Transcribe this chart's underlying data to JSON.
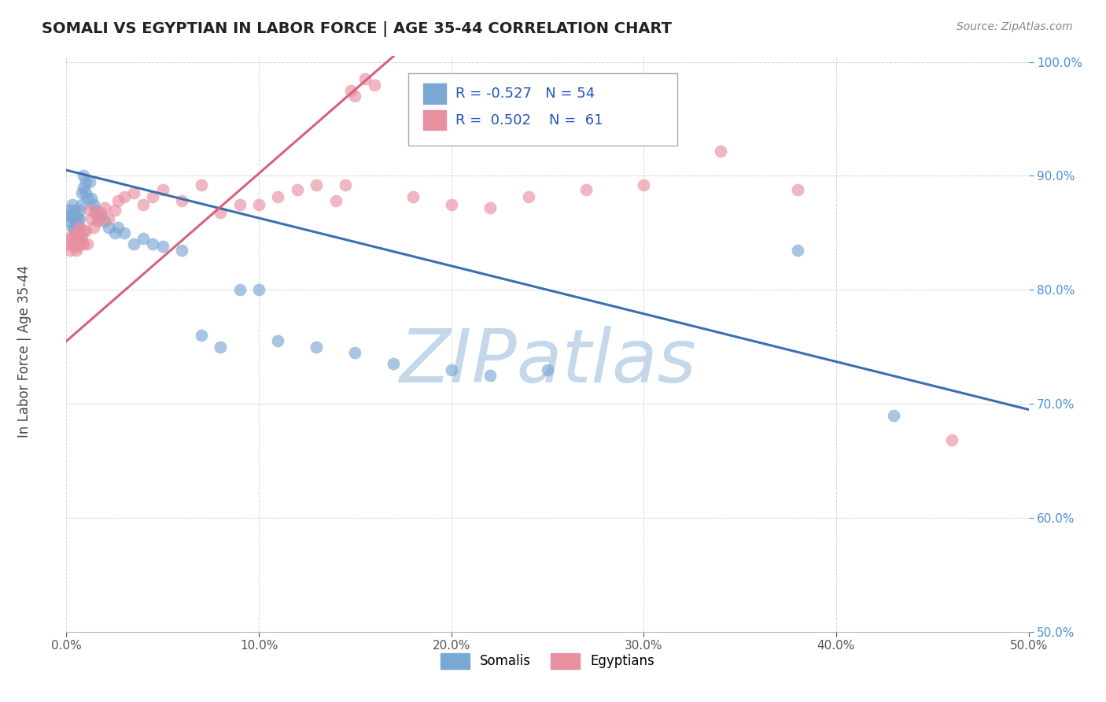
{
  "title": "SOMALI VS EGYPTIAN IN LABOR FORCE | AGE 35-44 CORRELATION CHART",
  "source": "Source: ZipAtlas.com",
  "ylabel": "In Labor Force | Age 35-44",
  "xlim": [
    0.0,
    0.5
  ],
  "ylim": [
    0.5,
    1.005
  ],
  "xticks": [
    0.0,
    0.1,
    0.2,
    0.3,
    0.4,
    0.5
  ],
  "yticks": [
    0.5,
    0.6,
    0.7,
    0.8,
    0.9,
    1.0
  ],
  "xticklabels": [
    "0.0%",
    "10.0%",
    "20.0%",
    "30.0%",
    "40.0%",
    "50.0%"
  ],
  "yticklabels": [
    "50.0%",
    "60.0%",
    "70.0%",
    "80.0%",
    "90.0%",
    "100.0%"
  ],
  "somali_R": -0.527,
  "somali_N": 54,
  "egyptian_R": 0.502,
  "egyptian_N": 61,
  "somali_color": "#7ba7d4",
  "egyptian_color": "#e88fa0",
  "somali_line_color": "#3b6faf",
  "egyptian_line_color": "#d4637a",
  "watermark": "ZIPatlas",
  "watermark_color": "#c5d8ea",
  "background_color": "#ffffff",
  "grid_color": "#cccccc",
  "somali_x": [
    0.001,
    0.002,
    0.002,
    0.003,
    0.003,
    0.003,
    0.004,
    0.004,
    0.004,
    0.005,
    0.005,
    0.005,
    0.006,
    0.006,
    0.006,
    0.007,
    0.007,
    0.007,
    0.008,
    0.008,
    0.009,
    0.009,
    0.01,
    0.01,
    0.011,
    0.012,
    0.013,
    0.014,
    0.015,
    0.016,
    0.018,
    0.02,
    0.022,
    0.025,
    0.027,
    0.03,
    0.035,
    0.04,
    0.045,
    0.05,
    0.06,
    0.07,
    0.08,
    0.09,
    0.1,
    0.11,
    0.13,
    0.15,
    0.17,
    0.2,
    0.22,
    0.25,
    0.38,
    0.43
  ],
  "somali_y": [
    0.865,
    0.86,
    0.87,
    0.855,
    0.865,
    0.875,
    0.855,
    0.862,
    0.87,
    0.85,
    0.858,
    0.865,
    0.848,
    0.855,
    0.862,
    0.855,
    0.862,
    0.87,
    0.875,
    0.885,
    0.89,
    0.9,
    0.885,
    0.895,
    0.88,
    0.895,
    0.88,
    0.875,
    0.87,
    0.865,
    0.865,
    0.86,
    0.855,
    0.85,
    0.855,
    0.85,
    0.84,
    0.845,
    0.84,
    0.838,
    0.835,
    0.76,
    0.75,
    0.8,
    0.8,
    0.755,
    0.75,
    0.745,
    0.735,
    0.73,
    0.725,
    0.73,
    0.835,
    0.69
  ],
  "egyptian_x": [
    0.001,
    0.002,
    0.002,
    0.003,
    0.003,
    0.004,
    0.004,
    0.005,
    0.005,
    0.005,
    0.006,
    0.006,
    0.006,
    0.007,
    0.007,
    0.007,
    0.008,
    0.008,
    0.009,
    0.009,
    0.01,
    0.011,
    0.012,
    0.013,
    0.014,
    0.015,
    0.016,
    0.017,
    0.018,
    0.02,
    0.022,
    0.025,
    0.027,
    0.03,
    0.035,
    0.04,
    0.045,
    0.05,
    0.06,
    0.07,
    0.08,
    0.09,
    0.1,
    0.11,
    0.12,
    0.13,
    0.14,
    0.145,
    0.148,
    0.15,
    0.155,
    0.16,
    0.18,
    0.2,
    0.22,
    0.24,
    0.27,
    0.3,
    0.34,
    0.38,
    0.46
  ],
  "egyptian_y": [
    0.84,
    0.835,
    0.845,
    0.84,
    0.848,
    0.838,
    0.845,
    0.835,
    0.842,
    0.848,
    0.838,
    0.845,
    0.852,
    0.842,
    0.848,
    0.855,
    0.842,
    0.848,
    0.852,
    0.84,
    0.852,
    0.84,
    0.87,
    0.862,
    0.855,
    0.868,
    0.86,
    0.862,
    0.868,
    0.872,
    0.862,
    0.87,
    0.878,
    0.882,
    0.885,
    0.875,
    0.882,
    0.888,
    0.878,
    0.892,
    0.868,
    0.875,
    0.875,
    0.882,
    0.888,
    0.892,
    0.878,
    0.892,
    0.975,
    0.97,
    0.985,
    0.98,
    0.882,
    0.875,
    0.872,
    0.882,
    0.888,
    0.892,
    0.922,
    0.888,
    0.668
  ]
}
